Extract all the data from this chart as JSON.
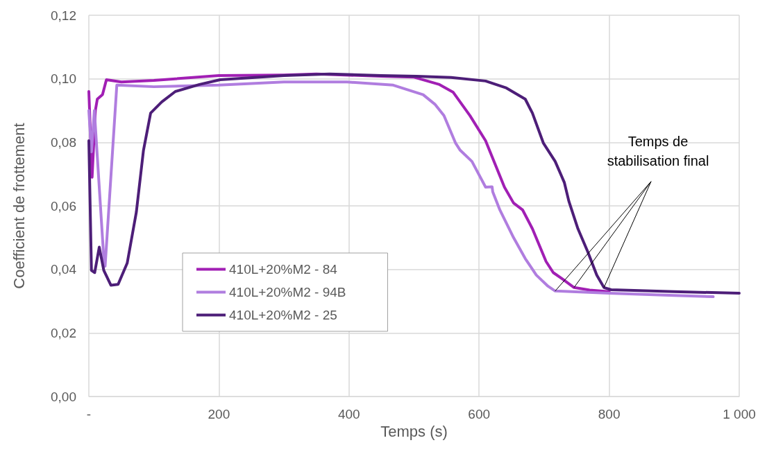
{
  "chart_data": {
    "type": "line",
    "xlabel": "Temps (s)",
    "ylabel": "Coefficient de frottement",
    "xlim": [
      0,
      1000
    ],
    "xticks": [
      {
        "value": 0,
        "label": "-"
      },
      200,
      400,
      600,
      800,
      {
        "value": 1000,
        "label": "1 000"
      }
    ],
    "ylim": [
      0,
      0.12
    ],
    "yticks": [
      {
        "value": 0,
        "label": "0,00"
      },
      {
        "value": 0.02,
        "label": "0,02"
      },
      {
        "value": 0.04,
        "label": "0,04"
      },
      {
        "value": 0.06,
        "label": "0,06"
      },
      {
        "value": 0.08,
        "label": "0,08"
      },
      {
        "value": 0.1,
        "label": "0,10"
      },
      {
        "value": 0.12,
        "label": "0,12"
      }
    ],
    "grid": true,
    "legend": "bottom left",
    "marker": "none",
    "line_style": "solid",
    "annotations": [
      {
        "text": "Temps de\nstabilisation final",
        "x": 746,
        "y": 0.0343
      }
    ],
    "series": [
      {
        "name": "410L+20%M2 - 84",
        "color": "#a11fb4",
        "x": [
          0,
          5,
          10,
          13,
          21,
          27,
          50,
          100,
          200,
          300,
          350,
          450,
          500,
          539,
          560,
          586,
          610,
          639,
          653,
          667,
          682,
          703,
          714,
          728,
          746,
          770,
          800
        ],
        "values": [
          0.096,
          0.069,
          0.09,
          0.0936,
          0.095,
          0.0997,
          0.099,
          0.0995,
          0.101,
          0.1012,
          0.1015,
          0.1008,
          0.1005,
          0.0982,
          0.0958,
          0.0884,
          0.0805,
          0.0659,
          0.0609,
          0.0587,
          0.0528,
          0.0425,
          0.039,
          0.037,
          0.0343,
          0.0335,
          0.033
        ]
      },
      {
        "name": "410L+20%M2 - 94B",
        "color": "#b07ddf",
        "x": [
          0,
          4,
          8.5,
          23,
          25,
          43,
          100,
          200,
          300,
          397,
          468,
          514,
          532,
          546,
          564,
          571,
          589,
          610,
          620,
          621,
          632,
          653,
          671,
          688,
          706,
          717,
          800,
          900,
          960
        ],
        "values": [
          0.09,
          0.077,
          0.09,
          0.0434,
          0.041,
          0.098,
          0.0975,
          0.098,
          0.099,
          0.099,
          0.098,
          0.095,
          0.092,
          0.0884,
          0.0797,
          0.0775,
          0.074,
          0.0659,
          0.066,
          0.0644,
          0.0587,
          0.05,
          0.0434,
          0.0382,
          0.0347,
          0.0332,
          0.0325,
          0.0318,
          0.0314
        ]
      },
      {
        "name": "410L+20%M2 - 25",
        "color": "#4d1e78",
        "x": [
          0,
          4,
          9,
          16,
          23,
          34,
          45,
          59,
          73,
          84,
          95,
          112,
          133,
          170,
          202,
          300,
          370,
          450,
          504,
          557,
          610,
          642,
          671,
          682,
          699,
          717,
          731,
          738,
          752,
          767,
          781,
          792,
          803,
          900,
          1000
        ],
        "values": [
          0.0805,
          0.0397,
          0.039,
          0.047,
          0.0397,
          0.035,
          0.0353,
          0.042,
          0.058,
          0.0775,
          0.0892,
          0.0927,
          0.096,
          0.0982,
          0.0997,
          0.101,
          0.1015,
          0.101,
          0.1008,
          0.1004,
          0.0993,
          0.0971,
          0.0936,
          0.0892,
          0.0797,
          0.074,
          0.0674,
          0.0615,
          0.0528,
          0.0456,
          0.0382,
          0.0343,
          0.0336,
          0.033,
          0.0325
        ]
      }
    ]
  }
}
